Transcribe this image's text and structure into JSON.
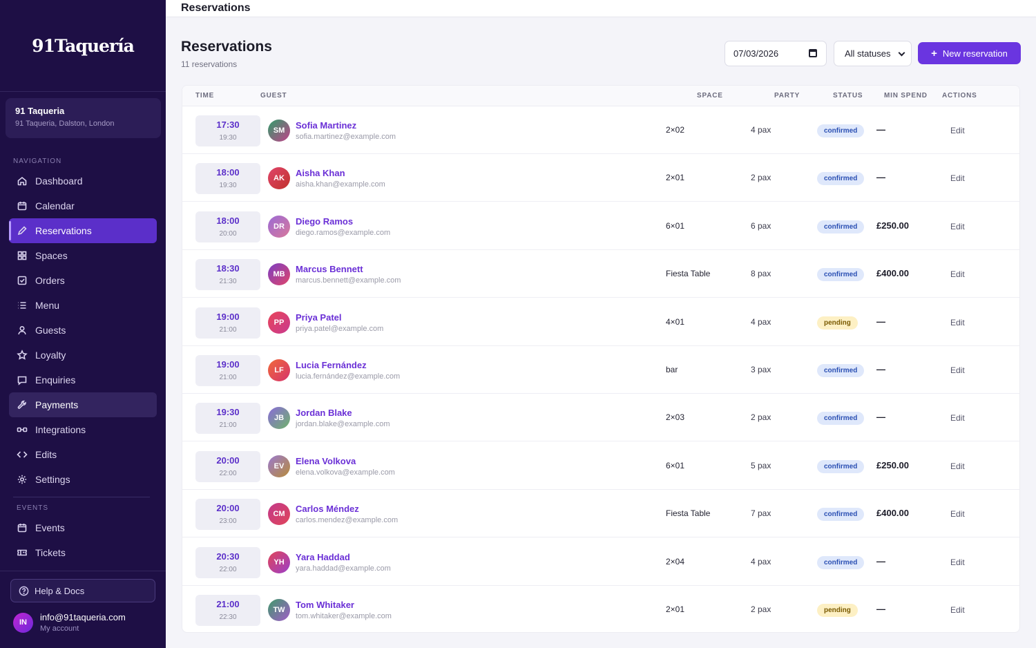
{
  "brand": {
    "logo_text": "91Taquería"
  },
  "venue": {
    "name": "91 Taqueria",
    "address": "91 Taqueria, Dalston, London"
  },
  "nav": {
    "section_label": "NAVIGATION",
    "items": [
      {
        "label": "Dashboard",
        "icon": "home-icon"
      },
      {
        "label": "Calendar",
        "icon": "calendar-icon"
      },
      {
        "label": "Reservations",
        "icon": "pencil-icon",
        "active": true
      },
      {
        "label": "Spaces",
        "icon": "grid-icon"
      },
      {
        "label": "Orders",
        "icon": "checkbox-icon"
      },
      {
        "label": "Menu",
        "icon": "list-icon"
      },
      {
        "label": "Guests",
        "icon": "user-icon"
      },
      {
        "label": "Loyalty",
        "icon": "star-icon"
      },
      {
        "label": "Enquiries",
        "icon": "message-icon"
      },
      {
        "label": "Payments",
        "icon": "wrench-icon",
        "hover": true
      },
      {
        "label": "Integrations",
        "icon": "link-icon"
      },
      {
        "label": "Edits",
        "icon": "code-icon"
      },
      {
        "label": "Settings",
        "icon": "gear-icon"
      }
    ]
  },
  "events_nav": {
    "section_label": "EVENTS",
    "items": [
      {
        "label": "Events",
        "icon": "calendar-icon"
      },
      {
        "label": "Tickets",
        "icon": "ticket-icon"
      }
    ]
  },
  "help": {
    "label": "Help & Docs"
  },
  "account": {
    "initials": "IN",
    "email": "info@91taqueria.com",
    "sub": "My account"
  },
  "topbar": {
    "title": "Reservations"
  },
  "header": {
    "title": "Reservations",
    "subtitle": "11 reservations",
    "date_value": "07/03/2026",
    "status_filter": "All statuses",
    "new_button": "New reservation"
  },
  "table": {
    "columns": [
      "TIME",
      "GUEST",
      "SPACE",
      "PARTY",
      "STATUS",
      "MIN SPEND",
      "ACTIONS"
    ],
    "edit_label": "Edit",
    "rows": [
      {
        "start": "17:30",
        "end": "19:30",
        "initials": "SM",
        "name": "Sofia Martinez",
        "email": "sofia.martinez@example.com",
        "space": "2×02",
        "party": "4 pax",
        "status": "confirmed",
        "min_spend": "—",
        "av1": "#2f9e6a",
        "av2": "#c2418a"
      },
      {
        "start": "18:00",
        "end": "19:30",
        "initials": "AK",
        "name": "Aisha Khan",
        "email": "aisha.khan@example.com",
        "space": "2×01",
        "party": "2 pax",
        "status": "confirmed",
        "min_spend": "—",
        "av1": "#e0456a",
        "av2": "#c0322c"
      },
      {
        "start": "18:00",
        "end": "20:00",
        "initials": "DR",
        "name": "Diego Ramos",
        "email": "diego.ramos@example.com",
        "space": "6×01",
        "party": "6 pax",
        "status": "confirmed",
        "min_spend": "£250.00",
        "av1": "#9b6bd6",
        "av2": "#d8789a"
      },
      {
        "start": "18:30",
        "end": "21:30",
        "initials": "MB",
        "name": "Marcus Bennett",
        "email": "marcus.bennett@example.com",
        "space": "Fiesta Table",
        "party": "8 pax",
        "status": "confirmed",
        "min_spend": "£400.00",
        "av1": "#7b3fc4",
        "av2": "#e0456a"
      },
      {
        "start": "19:00",
        "end": "21:00",
        "initials": "PP",
        "name": "Priya Patel",
        "email": "priya.patel@example.com",
        "space": "4×01",
        "party": "4 pax",
        "status": "pending",
        "min_spend": "—",
        "av1": "#e8455a",
        "av2": "#c93a8e"
      },
      {
        "start": "19:00",
        "end": "21:00",
        "initials": "LF",
        "name": "Lucia Fernández",
        "email": "lucia.fernández@example.com",
        "space": "bar",
        "party": "3 pax",
        "status": "confirmed",
        "min_spend": "—",
        "av1": "#f06a3a",
        "av2": "#d6336c"
      },
      {
        "start": "19:30",
        "end": "21:00",
        "initials": "JB",
        "name": "Jordan Blake",
        "email": "jordan.blake@example.com",
        "space": "2×03",
        "party": "2 pax",
        "status": "confirmed",
        "min_spend": "—",
        "av1": "#8a6bd9",
        "av2": "#6fb36a"
      },
      {
        "start": "20:00",
        "end": "22:00",
        "initials": "EV",
        "name": "Elena Volkova",
        "email": "elena.volkova@example.com",
        "space": "6×01",
        "party": "5 pax",
        "status": "confirmed",
        "min_spend": "£250.00",
        "av1": "#9a7ad0",
        "av2": "#b88b3a"
      },
      {
        "start": "20:00",
        "end": "23:00",
        "initials": "CM",
        "name": "Carlos Méndez",
        "email": "carlos.mendez@example.com",
        "space": "Fiesta Table",
        "party": "7 pax",
        "status": "confirmed",
        "min_spend": "£400.00",
        "av1": "#c23a8a",
        "av2": "#e0455a"
      },
      {
        "start": "20:30",
        "end": "22:00",
        "initials": "YH",
        "name": "Yara Haddad",
        "email": "yara.haddad@example.com",
        "space": "2×04",
        "party": "4 pax",
        "status": "confirmed",
        "min_spend": "—",
        "av1": "#e0455a",
        "av2": "#9b3fc9"
      },
      {
        "start": "21:00",
        "end": "22:30",
        "initials": "TW",
        "name": "Tom Whitaker",
        "email": "tom.whitaker@example.com",
        "space": "2×01",
        "party": "2 pax",
        "status": "pending",
        "min_spend": "—",
        "av1": "#3f9a6a",
        "av2": "#a25cc9"
      }
    ]
  }
}
